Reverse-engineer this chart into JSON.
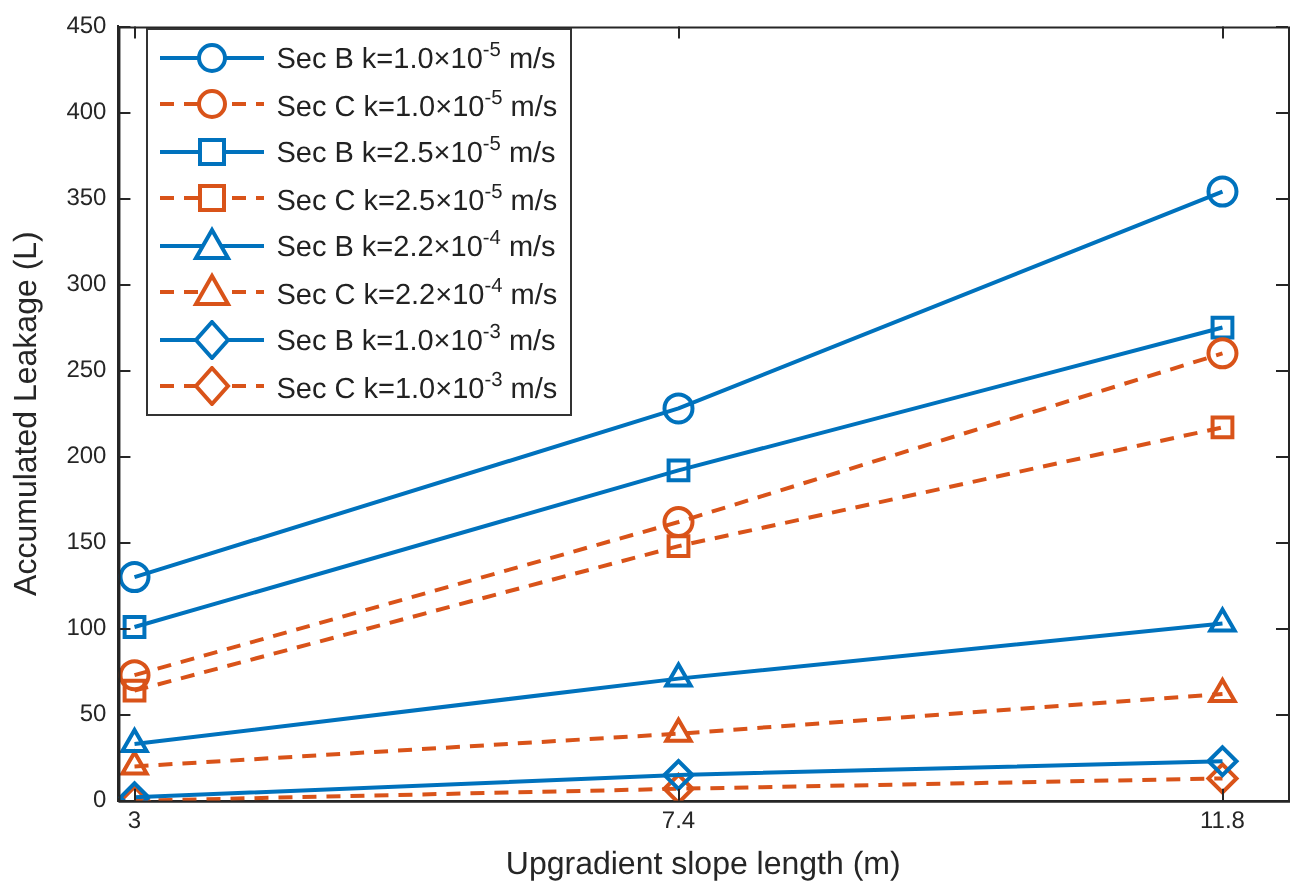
{
  "chart_data": {
    "type": "line",
    "xlabel": "Upgradient slope length (m)",
    "ylabel": "Accumulated Leakage (L)",
    "x": [
      3,
      7.4,
      11.8
    ],
    "xlim": [
      2.87,
      12.33
    ],
    "xticks": [
      3,
      7.4,
      11.8
    ],
    "ylim": [
      0,
      450
    ],
    "yticks": [
      0,
      50,
      100,
      150,
      200,
      250,
      300,
      350,
      400,
      450
    ],
    "grid": false,
    "legend": "top left",
    "series": [
      {
        "name": "Sec B k=1.0×10$^{-5}$ m/s",
        "color": "#0072bd",
        "marker": "circle",
        "line_style": "solid",
        "values": [
          130,
          228,
          354
        ]
      },
      {
        "name": "Sec C k=1.0×10$^{-5}$ m/s",
        "color": "#d95319",
        "marker": "circle",
        "line_style": "dashed",
        "values": [
          73,
          162,
          260
        ]
      },
      {
        "name": "Sec B k=2.5×10$^{-5}$ m/s",
        "color": "#0072bd",
        "marker": "square",
        "line_style": "solid",
        "values": [
          101,
          192,
          275
        ]
      },
      {
        "name": "Sec C k=2.5×10$^{-5}$ m/s",
        "color": "#d95319",
        "marker": "square",
        "line_style": "dashed",
        "values": [
          64,
          148,
          217
        ]
      },
      {
        "name": "Sec B k=2.2×10$^{-4}$ m/s",
        "color": "#0072bd",
        "marker": "triangle",
        "line_style": "solid",
        "values": [
          33,
          71,
          103
        ]
      },
      {
        "name": "Sec C k=2.2×10$^{-4}$ m/s",
        "color": "#d95319",
        "marker": "triangle",
        "line_style": "dashed",
        "values": [
          20,
          39,
          62
        ]
      },
      {
        "name": "Sec B k=1.0×10$^{-3}$ m/s",
        "color": "#0072bd",
        "marker": "diamond",
        "line_style": "solid",
        "values": [
          2,
          15,
          23
        ]
      },
      {
        "name": "Sec C k=1.0×10$^{-3}$ m/s",
        "color": "#d95319",
        "marker": "diamond",
        "line_style": "dashed",
        "values": [
          0,
          7,
          13
        ]
      }
    ]
  }
}
